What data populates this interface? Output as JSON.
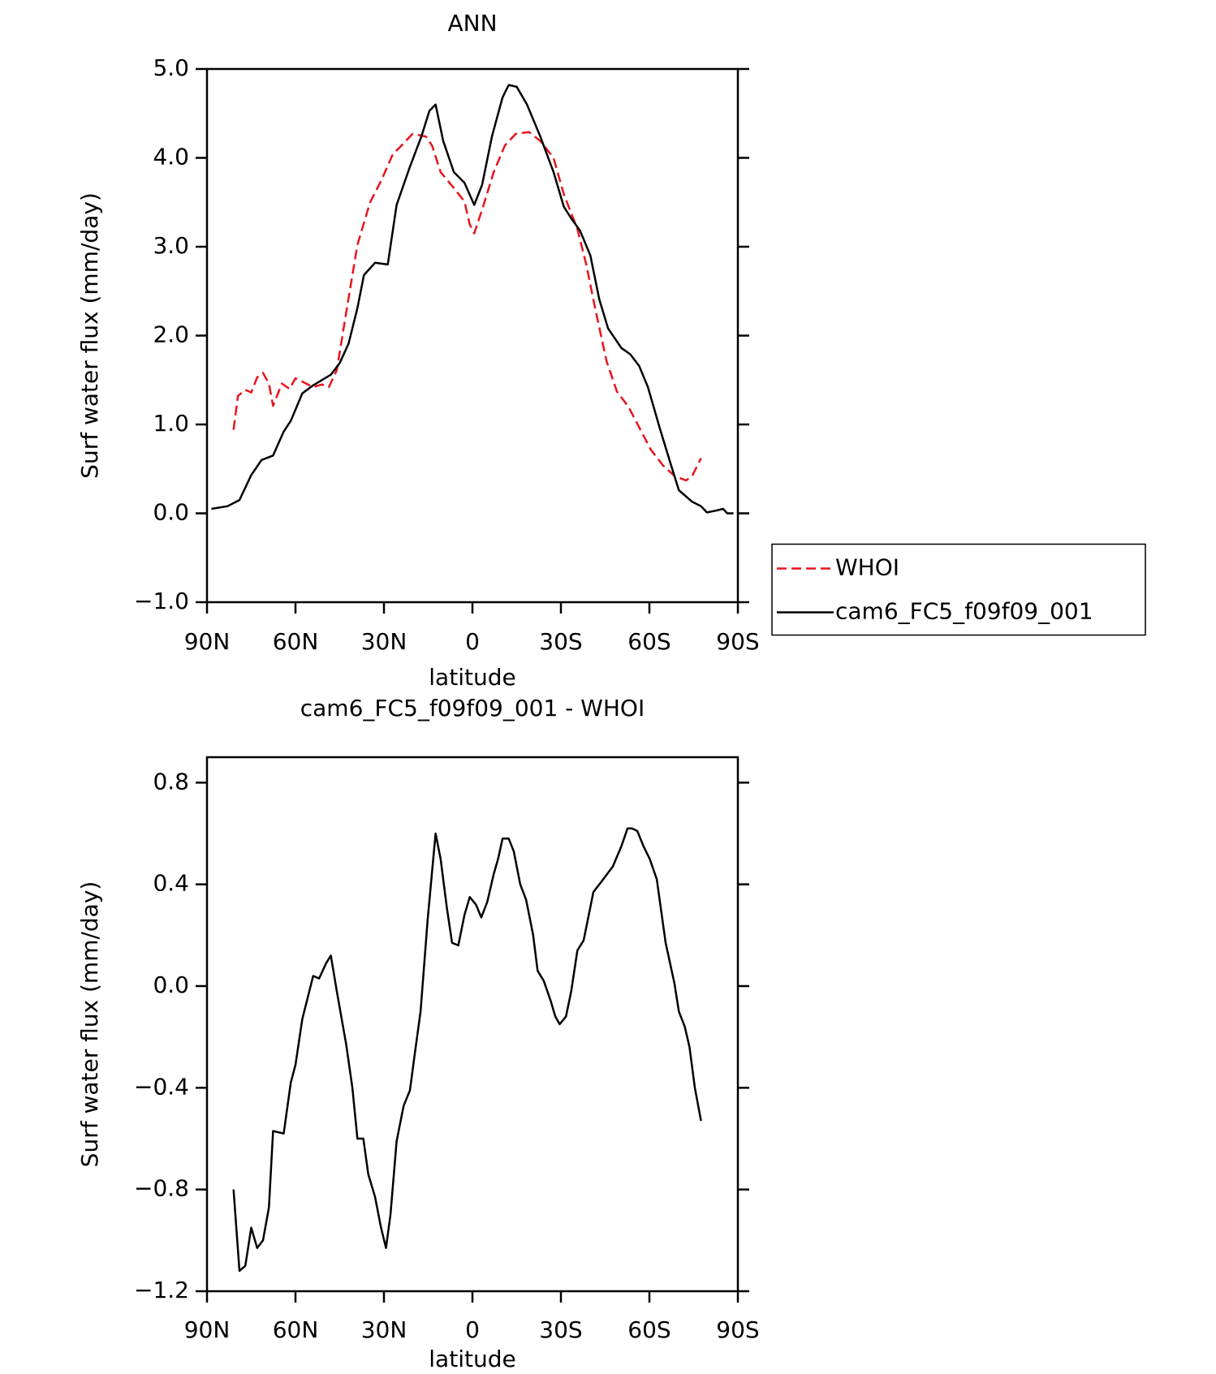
{
  "chart_data": [
    {
      "type": "line",
      "title": "ANN",
      "xlabel": "latitude",
      "ylabel": "Surf water flux (mm/day)",
      "xlim": [
        90,
        -90
      ],
      "xticks": [
        {
          "value": 90,
          "label": "90N"
        },
        {
          "value": 60,
          "label": "60N"
        },
        {
          "value": 30,
          "label": "30N"
        },
        0,
        {
          "value": -30,
          "label": "30S"
        },
        {
          "value": -60,
          "label": "60S"
        },
        {
          "value": -90,
          "label": "90S"
        }
      ],
      "ylim": [
        -1,
        5
      ],
      "yticks": [
        {
          "value": 5,
          "label": "5.0"
        },
        {
          "value": 4,
          "label": "4.0"
        },
        {
          "value": 3,
          "label": "3.0"
        },
        {
          "value": 2,
          "label": "2.0"
        },
        {
          "value": 1,
          "label": "1.0"
        },
        {
          "value": 0,
          "label": "0.0"
        },
        {
          "value": -1,
          "label": "−1.0"
        }
      ],
      "legend": "right",
      "series": [
        {
          "name": "WHOI",
          "color": "#e8141c",
          "dashed": true,
          "x": [
            81,
            79.5,
            77,
            75,
            73,
            71,
            69,
            67.6,
            64.6,
            62,
            60,
            57,
            54,
            51,
            48.7,
            46,
            42.8,
            39,
            34.7,
            31,
            27,
            24,
            20.3,
            15.8,
            13.7,
            10.8,
            6.3,
            2.7,
            0.9,
            -0.6,
            -3.6,
            -7.2,
            -11,
            -14.7,
            -19.2,
            -23,
            -27.5,
            -31,
            -35.6,
            -38.6,
            -41.6,
            -45.5,
            -49,
            -52.9,
            -56.5,
            -60.4,
            -64.6,
            -68.5,
            -72.4,
            -74.5,
            -77.5
          ],
          "values": [
            0.94,
            1.32,
            1.39,
            1.36,
            1.53,
            1.58,
            1.46,
            1.21,
            1.46,
            1.4,
            1.52,
            1.47,
            1.42,
            1.45,
            1.42,
            1.61,
            2.26,
            3.02,
            3.5,
            3.74,
            4.04,
            4.14,
            4.27,
            4.24,
            4.14,
            3.84,
            3.66,
            3.51,
            3.25,
            3.15,
            3.45,
            3.84,
            4.14,
            4.27,
            4.29,
            4.19,
            4.0,
            3.59,
            3.2,
            2.8,
            2.31,
            1.71,
            1.37,
            1.2,
            0.97,
            0.72,
            0.54,
            0.42,
            0.37,
            0.42,
            0.62
          ]
        },
        {
          "name": "cam6_FC5_f09f09_001",
          "color": "#000000",
          "dashed": false,
          "x": [
            88.5,
            83,
            79,
            75,
            71.5,
            67.6,
            64,
            61.6,
            57.7,
            54,
            48,
            45,
            42,
            39,
            36.8,
            33,
            28.7,
            25.7,
            21.2,
            17.3,
            14.6,
            12.5,
            9.9,
            6.3,
            2.7,
            -0.6,
            -3.3,
            -6.6,
            -10.2,
            -12.3,
            -15,
            -18.5,
            -23,
            -27.5,
            -31,
            -33.5,
            -36.5,
            -40,
            -43,
            -46,
            -50.5,
            -53.5,
            -56.5,
            -59.5,
            -63.4,
            -67,
            -70,
            -74.5,
            -77.5,
            -79.5,
            -82.5,
            -85,
            -86.4,
            -88.5
          ],
          "values": [
            0.05,
            0.08,
            0.15,
            0.43,
            0.6,
            0.65,
            0.92,
            1.04,
            1.35,
            1.44,
            1.56,
            1.69,
            1.91,
            2.31,
            2.68,
            2.82,
            2.8,
            3.47,
            3.9,
            4.24,
            4.53,
            4.6,
            4.19,
            3.84,
            3.72,
            3.47,
            3.7,
            4.24,
            4.68,
            4.82,
            4.8,
            4.6,
            4.24,
            3.84,
            3.45,
            3.32,
            3.18,
            2.9,
            2.41,
            2.08,
            1.86,
            1.79,
            1.66,
            1.42,
            0.97,
            0.58,
            0.26,
            0.13,
            0.08,
            0.01,
            0.03,
            0.05,
            0.0,
            0.0
          ]
        }
      ]
    },
    {
      "type": "line",
      "title": "cam6_FC5_f09f09_001 - WHOI",
      "xlabel": "latitude",
      "ylabel": "Surf water flux (mm/day)",
      "xlim": [
        90,
        -90
      ],
      "xticks": [
        {
          "value": 90,
          "label": "90N"
        },
        {
          "value": 60,
          "label": "60N"
        },
        {
          "value": 30,
          "label": "30N"
        },
        0,
        {
          "value": -30,
          "label": "30S"
        },
        {
          "value": -60,
          "label": "60S"
        },
        {
          "value": -90,
          "label": "90S"
        }
      ],
      "ylim": [
        -1.2,
        0.9
      ],
      "yticks": [
        0.8,
        0.4,
        {
          "value": 0,
          "label": "0.0"
        },
        {
          "value": -0.4,
          "label": "−0.4"
        },
        {
          "value": -0.8,
          "label": "−0.8"
        },
        {
          "value": -1.2,
          "label": "−1.2"
        }
      ],
      "color": "#000000",
      "x": [
        81,
        79,
        77,
        75,
        73,
        71,
        69,
        67.6,
        64,
        61.6,
        60,
        57.7,
        54,
        52,
        49.6,
        48,
        46,
        42.8,
        40.7,
        39,
        37,
        35.3,
        33,
        31,
        29.3,
        27.8,
        25.7,
        23.3,
        21.2,
        19.7,
        17.6,
        15.2,
        12.5,
        10.8,
        8.7,
        6.9,
        4.8,
        2.7,
        0.9,
        -1.2,
        -3,
        -5,
        -7.2,
        -8.7,
        -10.2,
        -12.3,
        -14,
        -16.2,
        -18.2,
        -20.6,
        -22.1,
        -24.2,
        -26.6,
        -28.1,
        -29.6,
        -31.7,
        -33.5,
        -35.6,
        -37.7,
        -41,
        -43.7,
        -47.6,
        -50.5,
        -52.6,
        -54.1,
        -55.9,
        -58,
        -60.1,
        -62.5,
        -65.5,
        -68.5,
        -70,
        -72,
        -73.6,
        -75.4,
        -77.5
      ],
      "values": [
        -0.8,
        -1.12,
        -1.1,
        -0.95,
        -1.03,
        -1.0,
        -0.87,
        -0.57,
        -0.58,
        -0.38,
        -0.31,
        -0.13,
        0.04,
        0.03,
        0.09,
        0.12,
        -0.02,
        -0.23,
        -0.4,
        -0.6,
        -0.6,
        -0.74,
        -0.83,
        -0.95,
        -1.03,
        -0.9,
        -0.61,
        -0.47,
        -0.41,
        -0.28,
        -0.1,
        0.26,
        0.6,
        0.5,
        0.31,
        0.17,
        0.16,
        0.28,
        0.35,
        0.32,
        0.27,
        0.33,
        0.44,
        0.5,
        0.58,
        0.58,
        0.53,
        0.4,
        0.34,
        0.2,
        0.06,
        0.02,
        -0.06,
        -0.12,
        -0.15,
        -0.12,
        -0.02,
        0.14,
        0.18,
        0.37,
        0.41,
        0.47,
        0.55,
        0.62,
        0.62,
        0.61,
        0.55,
        0.5,
        0.42,
        0.17,
        0.01,
        -0.1,
        -0.16,
        -0.24,
        -0.4,
        -0.53
      ]
    }
  ]
}
